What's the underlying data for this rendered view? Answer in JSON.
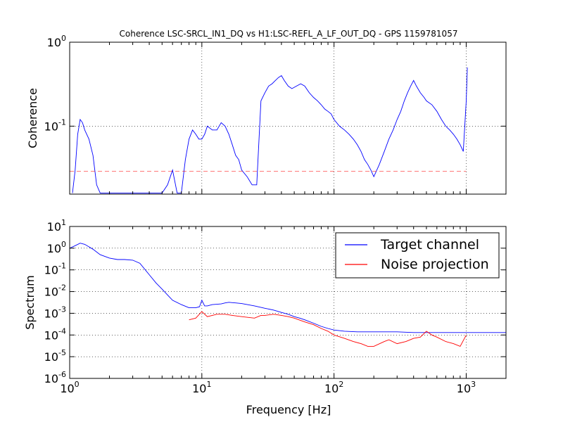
{
  "chart_data": [
    {
      "type": "line",
      "title": "Coherence LSC-SRCL_IN1_DQ vs H1:LSC-REFL_A_LF_OUT_DQ - GPS 1159781057",
      "ylabel": "Coherence",
      "xlabel": "",
      "xscale": "log",
      "yscale": "log",
      "xlim": [
        1,
        2000
      ],
      "ylim": [
        0.0155,
        1
      ],
      "grid": true,
      "x_tick_labels": [],
      "y_tick_labels": [
        {
          "base": "10",
          "exp": "-1"
        },
        {
          "base": "10",
          "exp": "0"
        }
      ],
      "threshold": 0.029,
      "series": [
        {
          "color": "#0000ff",
          "x": [
            1.05,
            1.1,
            1.15,
            1.2,
            1.25,
            1.3,
            1.4,
            1.5,
            1.6,
            1.7,
            1.8,
            2.0,
            2.5,
            3.0,
            3.5,
            4.0,
            4.5,
            5.0,
            5.5,
            6.0,
            6.5,
            7.0,
            7.5,
            8.0,
            8.5,
            9.0,
            9.5,
            10,
            10.5,
            11,
            12,
            13,
            14,
            15,
            16,
            17,
            18,
            19,
            20,
            22,
            24,
            26,
            28,
            30,
            32,
            34,
            36,
            38,
            40,
            42,
            45,
            48,
            52,
            56,
            60,
            65,
            70,
            75,
            80,
            85,
            90,
            95,
            100,
            110,
            120,
            130,
            140,
            150,
            160,
            170,
            180,
            190,
            200,
            220,
            240,
            260,
            280,
            300,
            320,
            340,
            360,
            380,
            400,
            420,
            450,
            480,
            500,
            550,
            600,
            650,
            700,
            750,
            800,
            850,
            900,
            950,
            1000,
            1020
          ],
          "y": [
            0.016,
            0.03,
            0.08,
            0.12,
            0.11,
            0.09,
            0.07,
            0.045,
            0.02,
            0.016,
            0.016,
            0.016,
            0.016,
            0.016,
            0.016,
            0.016,
            0.016,
            0.016,
            0.02,
            0.03,
            0.016,
            0.016,
            0.04,
            0.07,
            0.09,
            0.08,
            0.07,
            0.07,
            0.08,
            0.1,
            0.09,
            0.09,
            0.11,
            0.1,
            0.08,
            0.06,
            0.045,
            0.04,
            0.03,
            0.025,
            0.02,
            0.02,
            0.2,
            0.25,
            0.3,
            0.32,
            0.35,
            0.38,
            0.4,
            0.35,
            0.3,
            0.28,
            0.3,
            0.32,
            0.3,
            0.25,
            0.22,
            0.2,
            0.18,
            0.16,
            0.15,
            0.14,
            0.12,
            0.1,
            0.09,
            0.08,
            0.07,
            0.06,
            0.05,
            0.04,
            0.035,
            0.03,
            0.025,
            0.035,
            0.05,
            0.07,
            0.09,
            0.12,
            0.15,
            0.2,
            0.25,
            0.3,
            0.35,
            0.3,
            0.25,
            0.22,
            0.2,
            0.18,
            0.15,
            0.12,
            0.1,
            0.09,
            0.08,
            0.07,
            0.06,
            0.05,
            0.2,
            0.5
          ]
        }
      ]
    },
    {
      "type": "line",
      "title": "",
      "ylabel": "Spectrum",
      "xlabel": "Frequency [Hz]",
      "xscale": "log",
      "yscale": "log",
      "xlim": [
        1,
        2000
      ],
      "ylim": [
        1e-06,
        10
      ],
      "grid": true,
      "x_tick_labels": [
        {
          "base": "10",
          "exp": "0"
        },
        {
          "base": "10",
          "exp": "1"
        },
        {
          "base": "10",
          "exp": "2"
        },
        {
          "base": "10",
          "exp": "3"
        }
      ],
      "y_tick_labels": [
        {
          "base": "10",
          "exp": "-6"
        },
        {
          "base": "10",
          "exp": "-5"
        },
        {
          "base": "10",
          "exp": "-4"
        },
        {
          "base": "10",
          "exp": "-3"
        },
        {
          "base": "10",
          "exp": "-2"
        },
        {
          "base": "10",
          "exp": "-1"
        },
        {
          "base": "10",
          "exp": "0"
        },
        {
          "base": "10",
          "exp": "1"
        }
      ],
      "legend_position": "top-right",
      "series": [
        {
          "name": "Target channel",
          "color": "#0000ff",
          "x": [
            1,
            1.1,
            1.2,
            1.3,
            1.5,
            1.7,
            2.0,
            2.3,
            2.6,
            3.0,
            3.4,
            4.0,
            4.5,
            5.0,
            5.5,
            6.0,
            7.0,
            8.0,
            9.0,
            9.6,
            10.0,
            10.5,
            11,
            12,
            13,
            14,
            15,
            16,
            17,
            18,
            20,
            25,
            30,
            35,
            40,
            45,
            50,
            55,
            60,
            70,
            80,
            90,
            100,
            120,
            150,
            180,
            200,
            250,
            300,
            400,
            500,
            600,
            800,
            1000,
            1200,
            1500,
            2000
          ],
          "y": [
            1.0,
            1.3,
            1.7,
            1.5,
            0.9,
            0.5,
            0.35,
            0.3,
            0.3,
            0.28,
            0.2,
            0.06,
            0.025,
            0.013,
            0.007,
            0.004,
            0.0025,
            0.0018,
            0.0018,
            0.002,
            0.004,
            0.0022,
            0.0022,
            0.0025,
            0.0026,
            0.0027,
            0.003,
            0.0032,
            0.0031,
            0.003,
            0.0028,
            0.0022,
            0.0017,
            0.0014,
            0.0011,
            0.0009,
            0.0007,
            0.0006,
            0.0005,
            0.00035,
            0.00025,
            0.0002,
            0.00017,
            0.00015,
            0.00014,
            0.00014,
            0.00014,
            0.00014,
            0.00014,
            0.00013,
            0.00013,
            0.00013,
            0.00013,
            0.00013,
            0.00013,
            0.00013,
            0.00013
          ]
        },
        {
          "name": "Noise projection",
          "color": "#ff0000",
          "x": [
            8,
            9,
            10,
            11,
            12,
            13,
            15,
            17,
            20,
            25,
            28,
            30,
            35,
            40,
            45,
            50,
            60,
            70,
            80,
            90,
            100,
            120,
            140,
            160,
            180,
            200,
            240,
            260,
            300,
            350,
            400,
            450,
            500,
            550,
            600,
            700,
            800,
            900,
            1000
          ],
          "y": [
            0.0005,
            0.0006,
            0.0012,
            0.0007,
            0.0008,
            0.0009,
            0.0009,
            0.0008,
            0.0007,
            0.0006,
            0.0008,
            0.0008,
            0.0009,
            0.0008,
            0.0007,
            0.0006,
            0.0004,
            0.0003,
            0.0002,
            0.00015,
            0.0001,
            7e-05,
            5e-05,
            4e-05,
            3e-05,
            3e-05,
            5e-05,
            6e-05,
            4e-05,
            5e-05,
            7e-05,
            8e-05,
            0.00015,
            0.0001,
            8e-05,
            5e-05,
            4e-05,
            3e-05,
            0.0001
          ]
        }
      ]
    }
  ]
}
